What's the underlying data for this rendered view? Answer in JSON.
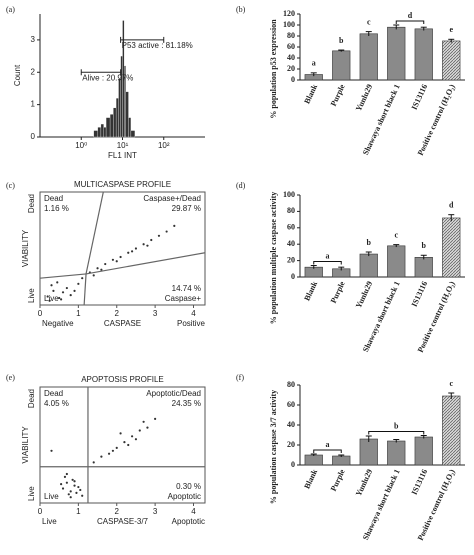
{
  "chart_data": [
    {
      "type": "histogram",
      "panel_label": "(a)",
      "y_label": "Count",
      "x_label": "FL1 INT",
      "bins": [
        2,
        2.5,
        3,
        3.5,
        4,
        5,
        6,
        7,
        8,
        9,
        10,
        11,
        12,
        14,
        16,
        20
      ],
      "values": [
        0.2,
        0.3,
        0.4,
        0.3,
        0.6,
        0.7,
        0.9,
        1.2,
        1.8,
        2.5,
        3.6,
        2.2,
        1.4,
        0.6,
        0.2
      ],
      "color": "#333333",
      "log_x": true,
      "xlim": [
        0.1,
        1000
      ],
      "xticks": [
        {
          "value": 1,
          "label": "10⁰"
        },
        {
          "value": 10,
          "label": "10¹"
        },
        {
          "value": 100,
          "label": "10²"
        }
      ],
      "ylim": [
        0,
        3.8
      ],
      "yticks": [
        0,
        1,
        2,
        3
      ],
      "gates": [
        {
          "text": "Alive : 20.97%",
          "range": [
            1,
            9
          ],
          "level": 2.0
        },
        {
          "text": "P53 active : 81.18%",
          "range": [
            9,
            100
          ],
          "level": 3.0
        }
      ]
    },
    {
      "type": "bar",
      "panel_label": "(b)",
      "y_label": "% population p53 expression",
      "categories": [
        "Blank",
        "Purple",
        "Yunlu29",
        "Shawaya short black 1",
        "IS13116",
        "Positive control (H₂O₂)"
      ],
      "values": [
        10,
        53,
        84,
        96,
        93,
        71
      ],
      "errors": [
        3,
        1.5,
        4,
        4,
        3,
        3
      ],
      "color": "#8a8a8a",
      "ylim": [
        0,
        120
      ],
      "yticks": [
        0,
        20,
        40,
        60,
        80,
        100,
        120
      ],
      "annotations": [
        {
          "text": "a",
          "categories": [
            "Blank"
          ]
        },
        {
          "text": "b",
          "categories": [
            "Purple"
          ]
        },
        {
          "text": "c",
          "categories": [
            "Yunlu29"
          ]
        },
        {
          "text": "d",
          "categories": [
            "Shawaya short black 1",
            "IS13116"
          ]
        },
        {
          "text": "e",
          "categories": [
            "Positive control (H₂O₂)"
          ]
        }
      ]
    },
    {
      "type": "scatter",
      "panel_label": "(c)",
      "title": "MULTICASPASE PROFILE",
      "x_label": "CASPASE",
      "y_label": "VIABILITY",
      "x_end_labels": [
        "Negative",
        "Positive"
      ],
      "y_end_labels": [
        "Live",
        "Dead"
      ],
      "x": [
        0.2,
        0.35,
        0.5,
        0.3,
        0.6,
        0.8,
        0.45,
        0.7,
        0.9,
        0.25,
        1.0,
        0.55,
        1.3,
        1.5,
        1.7,
        1.9,
        2.1,
        2.3,
        2.5,
        2.7,
        2.9,
        3.1,
        3.3,
        3.5,
        1.6,
        2.0,
        2.4,
        2.8,
        1.1,
        1.4
      ],
      "values": [
        0.3,
        0.5,
        0.25,
        0.7,
        0.45,
        0.35,
        0.8,
        0.6,
        0.5,
        0.15,
        0.75,
        0.2,
        1.15,
        1.3,
        1.45,
        1.6,
        1.7,
        1.85,
        2.0,
        2.15,
        2.3,
        2.45,
        2.6,
        2.8,
        1.25,
        1.55,
        1.9,
        2.1,
        0.95,
        1.05
      ],
      "color": "#333333",
      "xlim": [
        0,
        4.3
      ],
      "xticks": [
        0,
        1,
        2,
        3,
        4
      ],
      "ylim": [
        0,
        4
      ],
      "gates": [
        {
          "x1": 1.2,
          "y1": 1.1,
          "x2": 1.65,
          "y2": 4
        },
        {
          "x1": 1.2,
          "y1": 1.1,
          "x2": 4.3,
          "y2": 1.85
        },
        {
          "x1": 0,
          "y1": 0.95,
          "x2": 1.2,
          "y2": 1.1
        },
        {
          "x1": 1.2,
          "y1": 1.1,
          "x2": 1.15,
          "y2": 0
        }
      ],
      "quadrants": [
        {
          "corner": "top-left",
          "lines": [
            "Dead",
            "1.16 %"
          ]
        },
        {
          "corner": "top-right",
          "lines": [
            "Caspase+/Dead",
            "29.87 %"
          ]
        },
        {
          "corner": "bottom-right",
          "lines": [
            "14.74 %",
            "Caspase+"
          ]
        },
        {
          "corner": "bottom-left",
          "lines": [
            "Live"
          ]
        }
      ]
    },
    {
      "type": "bar",
      "panel_label": "(d)",
      "y_label": "% population multiple caspase activity",
      "categories": [
        "Blank",
        "Purple",
        "Yunlu29",
        "Shawaya short black 1",
        "IS13116",
        "Positive control (H₂O₂)"
      ],
      "values": [
        12,
        10,
        28,
        38,
        24,
        72
      ],
      "errors": [
        2,
        2,
        2.5,
        1.5,
        2.5,
        4
      ],
      "color": "#8a8a8a",
      "ylim": [
        0,
        100
      ],
      "yticks": [
        0,
        20,
        40,
        60,
        80,
        100
      ],
      "annotations": [
        {
          "text": "a",
          "categories": [
            "Blank",
            "Purple"
          ]
        },
        {
          "text": "b",
          "categories": [
            "Yunlu29"
          ]
        },
        {
          "text": "c",
          "categories": [
            "Shawaya short black 1"
          ]
        },
        {
          "text": "b",
          "categories": [
            "IS13116"
          ]
        },
        {
          "text": "d",
          "categories": [
            "Positive control (H₂O₂)"
          ]
        }
      ]
    },
    {
      "type": "scatter",
      "panel_label": "(e)",
      "title": "APOPTOSIS PROFILE",
      "x_label": "CASPASE-3/7",
      "y_label": "VIABILITY",
      "x_end_labels": [
        "Live",
        "Apoptotic"
      ],
      "y_end_labels": [
        "Live",
        "Dead"
      ],
      "x": [
        0.6,
        0.7,
        0.8,
        0.9,
        1.0,
        0.75,
        0.85,
        0.65,
        0.95,
        0.55,
        0.8,
        0.9,
        1.05,
        0.7,
        1.4,
        1.6,
        1.8,
        2.0,
        2.2,
        2.4,
        2.6,
        2.8,
        2.3,
        2.5,
        1.9,
        2.1,
        2.7,
        0.3,
        1.1,
        3.0
      ],
      "values": [
        0.5,
        0.7,
        0.4,
        0.6,
        0.55,
        0.3,
        0.8,
        0.9,
        0.35,
        0.65,
        0.2,
        0.75,
        0.45,
        1.0,
        1.4,
        1.6,
        1.7,
        1.9,
        2.1,
        2.3,
        2.5,
        2.6,
        2.0,
        2.2,
        1.8,
        2.4,
        2.8,
        1.8,
        0.25,
        2.9
      ],
      "color": "#333333",
      "xlim": [
        0,
        4.3
      ],
      "xticks": [
        0,
        1,
        2,
        3,
        4
      ],
      "ylim": [
        0,
        4
      ],
      "gates": [
        {
          "x1": 1.25,
          "y1": 0,
          "x2": 1.25,
          "y2": 4
        },
        {
          "x1": 0,
          "y1": 1.25,
          "x2": 4.3,
          "y2": 1.25
        }
      ],
      "quadrants": [
        {
          "corner": "top-left",
          "lines": [
            "Dead",
            "4.05 %"
          ]
        },
        {
          "corner": "top-right",
          "lines": [
            "Apoptotic/Dead",
            "24.35 %"
          ]
        },
        {
          "corner": "bottom-right",
          "lines": [
            "0.30 %",
            "Apoptotic"
          ]
        },
        {
          "corner": "bottom-left",
          "lines": [
            "Live"
          ]
        }
      ]
    },
    {
      "type": "bar",
      "panel_label": "(f)",
      "y_label": "% population caspase 3/7 activity",
      "categories": [
        "Blank",
        "Purple",
        "Yunlu29",
        "Shawaya short black 1",
        "IS13116",
        "Positive control (H₂O₂)"
      ],
      "values": [
        10,
        9,
        26,
        24,
        28,
        69
      ],
      "errors": [
        1,
        1,
        3,
        1.5,
        1.5,
        3
      ],
      "color": "#8a8a8a",
      "ylim": [
        0,
        80
      ],
      "yticks": [
        0,
        20,
        40,
        60,
        80
      ],
      "annotations": [
        {
          "text": "a",
          "categories": [
            "Blank",
            "Purple"
          ]
        },
        {
          "text": "b",
          "categories": [
            "Yunlu29",
            "Shawaya short black 1",
            "IS13116"
          ]
        },
        {
          "text": "c",
          "categories": [
            "Positive control (H₂O₂)"
          ]
        }
      ]
    }
  ]
}
